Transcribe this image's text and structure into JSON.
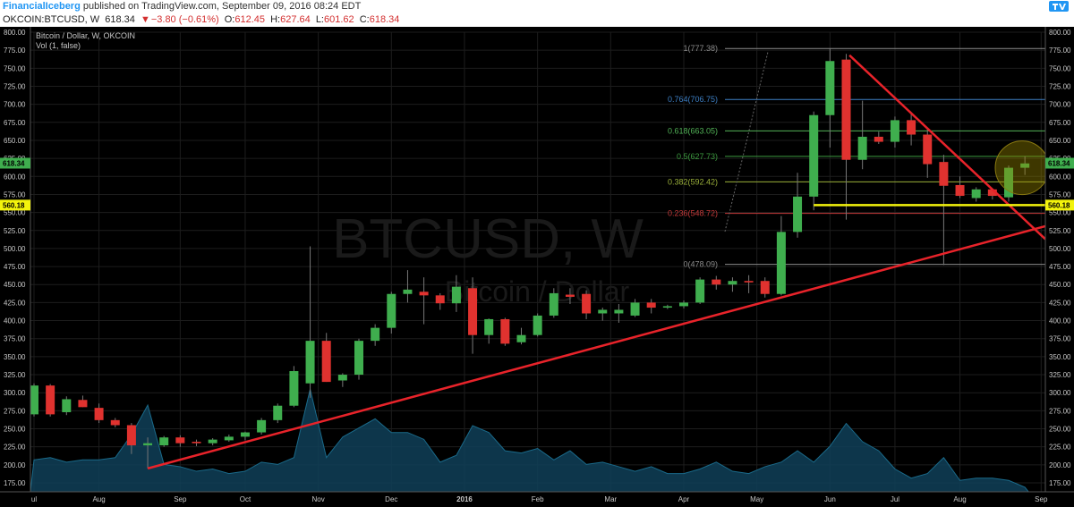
{
  "header": {
    "author": "FinancialIceberg",
    "published_text": "published on TradingView.com, September 09, 2016 08:24 EDT"
  },
  "ticker": {
    "symbol": "OKCOIN:BTCUSD, W",
    "last": "618.34",
    "change": "−3.80 (−0.61%)",
    "open_label": "O:",
    "open": "612.45",
    "high_label": "H:",
    "high": "627.64",
    "low_label": "L:",
    "low": "601.62",
    "close_label": "C:",
    "close": "618.34"
  },
  "legend": {
    "series": "Bitcoin / Dollar, W, OKCOIN",
    "indicator": "Vol (1, false)"
  },
  "watermark": {
    "symbol": "BTCUSD, W",
    "name": "Bitcoin / Dollar"
  },
  "colors": {
    "up": "#3fae4e",
    "down": "#e0322f",
    "trend": "#e8232a",
    "support": "#f3f30c",
    "bg": "#000000",
    "grid": "#1d1d1d",
    "volume": "#0f4058"
  },
  "price_labels": {
    "current": "618.34",
    "support": "560.18"
  },
  "chart_data": {
    "type": "candlestick",
    "y_ticks": [
      "800.00",
      "775.00",
      "750.00",
      "725.00",
      "700.00",
      "675.00",
      "650.00",
      "625.00",
      "600.00",
      "575.00",
      "550.00",
      "525.00",
      "500.00",
      "475.00",
      "450.00",
      "425.00",
      "400.00",
      "375.00",
      "350.00",
      "325.00",
      "300.00",
      "275.00",
      "250.00",
      "225.00",
      "200.00",
      "175.00"
    ],
    "y_tick_values": [
      800,
      775,
      750,
      725,
      700,
      675,
      650,
      625,
      600,
      575,
      550,
      525,
      500,
      475,
      450,
      425,
      400,
      375,
      350,
      325,
      300,
      275,
      250,
      225,
      200,
      175
    ],
    "ylim": [
      160,
      805
    ],
    "x_labels": [
      "ul",
      "Aug",
      "Sep",
      "Oct",
      "Nov",
      "Dec",
      "2016",
      "Feb",
      "Mar",
      "Apr",
      "May",
      "Jun",
      "Jul",
      "Aug",
      "Sep"
    ],
    "x_label_weeks": [
      0,
      4,
      9,
      13,
      17.5,
      22,
      26.5,
      31,
      35.5,
      40,
      44.5,
      49,
      53,
      57,
      62
    ],
    "candles": [
      {
        "o": 270,
        "h": 313,
        "l": 267,
        "c": 310
      },
      {
        "o": 310,
        "h": 312,
        "l": 267,
        "c": 270
      },
      {
        "o": 273,
        "h": 295,
        "l": 269,
        "c": 291
      },
      {
        "o": 290,
        "h": 296,
        "l": 280,
        "c": 280
      },
      {
        "o": 279,
        "h": 285,
        "l": 258,
        "c": 262
      },
      {
        "o": 262,
        "h": 265,
        "l": 252,
        "c": 255
      },
      {
        "o": 255,
        "h": 258,
        "l": 215,
        "c": 227
      },
      {
        "o": 227,
        "h": 238,
        "l": 195,
        "c": 230
      },
      {
        "o": 227,
        "h": 240,
        "l": 225,
        "c": 238
      },
      {
        "o": 238,
        "h": 241,
        "l": 225,
        "c": 230
      },
      {
        "o": 232,
        "h": 235,
        "l": 226,
        "c": 230
      },
      {
        "o": 230,
        "h": 237,
        "l": 227,
        "c": 235
      },
      {
        "o": 234,
        "h": 242,
        "l": 232,
        "c": 239
      },
      {
        "o": 239,
        "h": 246,
        "l": 234,
        "c": 245
      },
      {
        "o": 245,
        "h": 265,
        "l": 242,
        "c": 262
      },
      {
        "o": 262,
        "h": 285,
        "l": 258,
        "c": 282
      },
      {
        "o": 282,
        "h": 337,
        "l": 280,
        "c": 330
      },
      {
        "o": 313,
        "h": 503,
        "l": 293,
        "c": 372
      },
      {
        "o": 372,
        "h": 383,
        "l": 315,
        "c": 315
      },
      {
        "o": 317,
        "h": 327,
        "l": 308,
        "c": 325
      },
      {
        "o": 325,
        "h": 375,
        "l": 318,
        "c": 372
      },
      {
        "o": 372,
        "h": 395,
        "l": 365,
        "c": 390
      },
      {
        "o": 390,
        "h": 440,
        "l": 382,
        "c": 437
      },
      {
        "o": 437,
        "h": 470,
        "l": 425,
        "c": 443
      },
      {
        "o": 440,
        "h": 460,
        "l": 395,
        "c": 435
      },
      {
        "o": 435,
        "h": 438,
        "l": 415,
        "c": 424
      },
      {
        "o": 424,
        "h": 463,
        "l": 412,
        "c": 447
      },
      {
        "o": 445,
        "h": 460,
        "l": 354,
        "c": 380
      },
      {
        "o": 380,
        "h": 403,
        "l": 368,
        "c": 402
      },
      {
        "o": 402,
        "h": 404,
        "l": 365,
        "c": 368
      },
      {
        "o": 370,
        "h": 390,
        "l": 367,
        "c": 380
      },
      {
        "o": 380,
        "h": 410,
        "l": 378,
        "c": 407
      },
      {
        "o": 407,
        "h": 445,
        "l": 404,
        "c": 438
      },
      {
        "o": 436,
        "h": 445,
        "l": 423,
        "c": 433
      },
      {
        "o": 437,
        "h": 442,
        "l": 402,
        "c": 410
      },
      {
        "o": 410,
        "h": 418,
        "l": 400,
        "c": 415
      },
      {
        "o": 410,
        "h": 423,
        "l": 397,
        "c": 415
      },
      {
        "o": 407,
        "h": 430,
        "l": 405,
        "c": 425
      },
      {
        "o": 425,
        "h": 430,
        "l": 410,
        "c": 418
      },
      {
        "o": 418,
        "h": 422,
        "l": 416,
        "c": 420
      },
      {
        "o": 420,
        "h": 428,
        "l": 417,
        "c": 425
      },
      {
        "o": 425,
        "h": 460,
        "l": 423,
        "c": 457
      },
      {
        "o": 457,
        "h": 462,
        "l": 443,
        "c": 450
      },
      {
        "o": 450,
        "h": 460,
        "l": 440,
        "c": 455
      },
      {
        "o": 455,
        "h": 463,
        "l": 438,
        "c": 453
      },
      {
        "o": 455,
        "h": 460,
        "l": 432,
        "c": 437
      },
      {
        "o": 437,
        "h": 545,
        "l": 435,
        "c": 523
      },
      {
        "o": 523,
        "h": 605,
        "l": 515,
        "c": 572
      },
      {
        "o": 572,
        "h": 690,
        "l": 553,
        "c": 685
      },
      {
        "o": 685,
        "h": 777,
        "l": 640,
        "c": 760
      },
      {
        "o": 762,
        "h": 770,
        "l": 540,
        "c": 623
      },
      {
        "o": 623,
        "h": 705,
        "l": 610,
        "c": 655
      },
      {
        "o": 655,
        "h": 662,
        "l": 645,
        "c": 648
      },
      {
        "o": 648,
        "h": 683,
        "l": 640,
        "c": 678
      },
      {
        "o": 678,
        "h": 686,
        "l": 643,
        "c": 658
      },
      {
        "o": 658,
        "h": 665,
        "l": 598,
        "c": 617
      },
      {
        "o": 620,
        "h": 630,
        "l": 477,
        "c": 587
      },
      {
        "o": 588,
        "h": 600,
        "l": 570,
        "c": 573
      },
      {
        "o": 570,
        "h": 585,
        "l": 565,
        "c": 582
      },
      {
        "o": 582,
        "h": 583,
        "l": 568,
        "c": 573
      },
      {
        "o": 571,
        "h": 615,
        "l": 565,
        "c": 612
      },
      {
        "o": 612,
        "h": 628,
        "l": 602,
        "c": 618
      }
    ],
    "volume": [
      14,
      15,
      13,
      14,
      14,
      15,
      25,
      38,
      12,
      11,
      9,
      10,
      8,
      9,
      13,
      12,
      15,
      45,
      15,
      24,
      28,
      32,
      26,
      26,
      23,
      13,
      16,
      29,
      26,
      18,
      17,
      19,
      14,
      18,
      12,
      13,
      11,
      9,
      11,
      8,
      8,
      10,
      13,
      9,
      8,
      11,
      13,
      18,
      13,
      20,
      30,
      22,
      18,
      10,
      6,
      8,
      15,
      5,
      6,
      6,
      5,
      2
    ],
    "fibonacci": [
      {
        "label": "1(777.38)",
        "level": 777.38,
        "color": "#8a8a8a"
      },
      {
        "label": "0.764(706.75)",
        "level": 706.75,
        "color": "#3d7fc4"
      },
      {
        "label": "0.618(663.05)",
        "level": 663.05,
        "color": "#52b357"
      },
      {
        "label": "0.5(627.73)",
        "level": 627.73,
        "color": "#3c9a3f"
      },
      {
        "label": "0.382(592.42)",
        "level": 592.42,
        "color": "#9aaf3a"
      },
      {
        "label": "0.236(548.72)",
        "level": 548.72,
        "color": "#c63a3a"
      },
      {
        "label": "0(478.09)",
        "level": 478.09,
        "color": "#8a8a8a"
      }
    ],
    "support_level": 560.18
  }
}
